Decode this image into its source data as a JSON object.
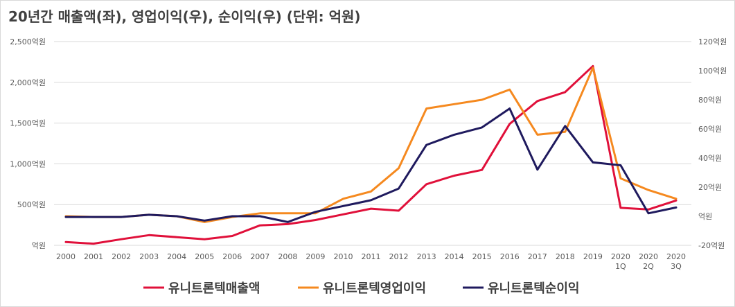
{
  "title": "20년간 매출액(좌), 영업이익(우), 순이익(우) (단위: 억원)",
  "colors": {
    "sales": "#e0103a",
    "op_income": "#f5891f",
    "net_income": "#1f1a5e",
    "grid": "#d9d9d9"
  },
  "chart_data": {
    "type": "line",
    "x": [
      "2000",
      "2001",
      "2002",
      "2003",
      "2004",
      "2005",
      "2006",
      "2007",
      "2008",
      "2009",
      "2010",
      "2011",
      "2012",
      "2013",
      "2014",
      "2015",
      "2016",
      "2017",
      "2018",
      "2019",
      "2020\n1Q",
      "2020\n2Q",
      "2020\n3Q"
    ],
    "y_left": {
      "ylim": [
        0,
        2500
      ],
      "ticks": [
        0,
        500,
        1000,
        1500,
        2000,
        2500
      ],
      "tick_labels": [
        "억원",
        "500억원",
        "1,000억원",
        "1,500억원",
        "2,000억원",
        "2,500억원"
      ]
    },
    "y_right": {
      "ylim": [
        -20,
        120
      ],
      "ticks": [
        -20,
        0,
        20,
        40,
        60,
        80,
        100,
        120
      ],
      "tick_labels": [
        "-20억원",
        "억원",
        "20억원",
        "40억원",
        "60억원",
        "80억원",
        "100억원",
        "120억원"
      ]
    },
    "grid": true,
    "legend": "bottom",
    "series": [
      {
        "name": "유니트론텍매출액",
        "axis": "left",
        "color_key": "sales",
        "values": [
          40,
          20,
          75,
          125,
          100,
          75,
          115,
          245,
          260,
          310,
          380,
          450,
          425,
          750,
          855,
          925,
          1490,
          1770,
          1880,
          2200,
          460,
          440,
          550
        ]
      },
      {
        "name": "유니트론텍영업이익",
        "axis": "right",
        "color_key": "op_income",
        "values": [
          0,
          -0.5,
          -0.5,
          1,
          0,
          -4,
          -0.5,
          2,
          2,
          2,
          12,
          17,
          33,
          74,
          77,
          80,
          87,
          56,
          58,
          102,
          26,
          18,
          12
        ]
      },
      {
        "name": "유니트론텍순이익",
        "axis": "right",
        "color_key": "net_income",
        "values": [
          -0.5,
          -0.5,
          -0.5,
          1,
          0,
          -3,
          0,
          0,
          -4,
          3,
          7,
          11,
          19,
          49,
          56,
          61,
          74,
          32,
          62,
          37,
          35,
          2,
          6
        ]
      }
    ]
  }
}
